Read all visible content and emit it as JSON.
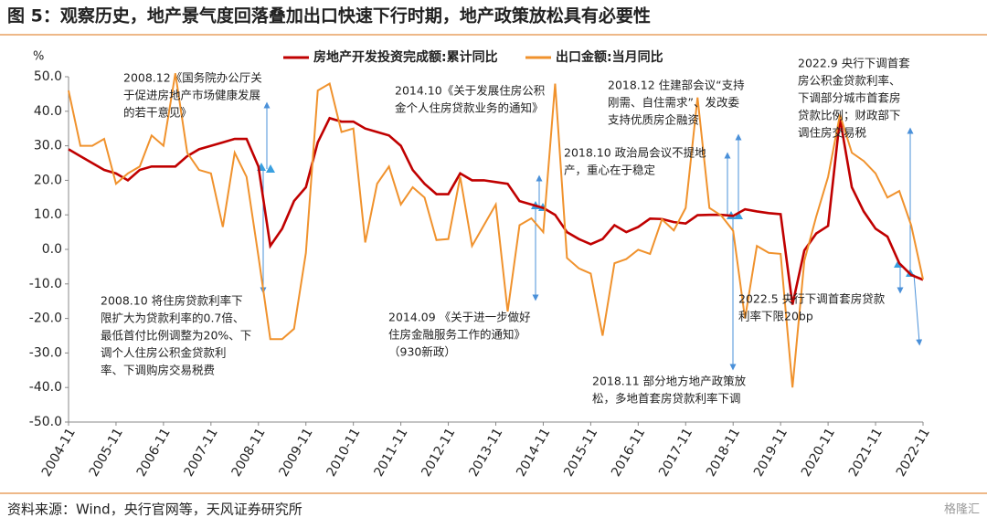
{
  "title": "图 5：观察历史，地产景气度回落叠加出口快速下行时期，地产政策放松具有必要性",
  "source": "资料来源：Wind，央行官网等，天风证券研究所",
  "watermark": "格隆汇",
  "chart_data": {
    "type": "line",
    "y_label": "%",
    "categories": [
      "2004-11",
      null,
      null,
      null,
      "2005-11",
      null,
      null,
      null,
      "2006-11",
      null,
      null,
      null,
      "2007-11",
      null,
      null,
      null,
      "2008-11",
      null,
      null,
      null,
      "2009-11",
      null,
      null,
      null,
      "2010-11",
      null,
      null,
      null,
      "2011-11",
      null,
      null,
      null,
      "2012-11",
      null,
      null,
      null,
      "2013-11",
      null,
      null,
      null,
      "2014-11",
      null,
      null,
      null,
      "2015-11",
      null,
      null,
      null,
      "2016-11",
      null,
      null,
      null,
      "2017-11",
      null,
      null,
      null,
      "2018-11",
      null,
      null,
      null,
      "2019-11",
      null,
      null,
      null,
      "2020-11",
      null,
      null,
      null,
      "2021-11",
      null,
      null,
      null,
      "2022-11"
    ],
    "series": [
      {
        "name": "房地产开发投资完成额:累计同比",
        "color": "#c00000",
        "values": [
          29,
          27,
          25,
          23,
          22,
          20,
          23,
          24,
          24,
          24,
          27,
          29,
          30,
          31,
          32,
          32,
          24,
          1,
          6,
          14,
          18,
          31,
          38,
          37,
          37,
          35,
          34,
          33,
          30,
          23,
          19,
          16,
          16,
          22,
          20,
          20,
          19.5,
          19,
          14,
          13,
          12,
          10,
          5,
          3,
          1.5,
          3,
          7,
          5,
          6.5,
          8.9,
          8.8,
          7.9,
          7.5,
          9.9,
          10,
          10,
          9.7,
          11.6,
          11,
          10.5,
          10.2,
          -16,
          -0.3,
          4.6,
          6.8,
          38,
          18,
          11,
          6,
          3.7,
          -4,
          -7.4,
          -8.8
        ]
      },
      {
        "name": "出口金额:当月同比",
        "color": "#f0922d",
        "values": [
          46,
          30,
          30,
          32,
          19,
          22,
          24,
          33,
          30,
          51,
          28,
          23,
          22,
          6.5,
          28,
          21,
          -2,
          -26,
          -26,
          -23,
          -1,
          46,
          48,
          34,
          35,
          2,
          19,
          24,
          13,
          18,
          15,
          2.7,
          3,
          21,
          1,
          7,
          13,
          -18,
          7,
          9,
          5,
          48,
          -2.5,
          -5.5,
          -7,
          -25,
          -4,
          -2.8,
          -0.1,
          -1.3,
          8.7,
          5.5,
          12,
          44,
          12,
          9.8,
          5.4,
          -20,
          1,
          -1,
          -1.3,
          -40,
          -3.3,
          9.5,
          21,
          39,
          28,
          25.6,
          22,
          15,
          16.9,
          7,
          -8.7
        ]
      }
    ],
    "ylim": [
      -50,
      50
    ],
    "yticks": [
      {
        "value": -50,
        "label": "-50.0"
      },
      {
        "value": -40,
        "label": "-40.0"
      },
      {
        "value": -30,
        "label": "-30.0"
      },
      {
        "value": -20,
        "label": "-20.0"
      },
      {
        "value": -10,
        "label": "-10.0"
      },
      {
        "value": 0,
        "label": "0.0"
      },
      {
        "value": 10,
        "label": "10.0"
      },
      {
        "value": 20,
        "label": "20.0"
      },
      {
        "value": 30,
        "label": "30.0"
      },
      {
        "value": 40,
        "label": "40.0"
      },
      {
        "value": 50,
        "label": "50.0"
      }
    ],
    "legend": "top",
    "annotations": [
      {
        "lines": [
          "2008.12《国务院办公厅关",
          "于促进房地产市场健康发展",
          "的若干意见》"
        ]
      },
      {
        "lines": [
          "2008.10 将住房贷款利率下",
          "限扩大为贷款利率的0.7倍、",
          "最低首付比例调整为20%、下",
          "调个人住房公积金贷款利",
          "率、下调购房交易税费"
        ]
      },
      {
        "lines": [
          "2014.10《关于发展住房公积",
          "金个人住房贷款业务的通知》"
        ]
      },
      {
        "lines": [
          "2014.09 《关于进一步做好",
          "住房金融服务工作的通知》",
          "（930新政）"
        ]
      },
      {
        "lines": [
          "2018.12 住建部会议“支持",
          "刚需、自住需求”、发改委",
          "支持优质房企融资"
        ]
      },
      {
        "lines": [
          "2018.10 政治局会议不提地",
          "产，重心在于稳定"
        ]
      },
      {
        "lines": [
          "2018.11 部分地方地产政策放",
          "松，多地首套房贷款利率下调"
        ]
      },
      {
        "lines": [
          "2022.9 央行下调首套",
          "房公积金贷款利率、",
          "下调部分城市首套房",
          "贷款比例；财政部下",
          "调住房交易税"
        ]
      },
      {
        "lines": [
          "2022.5 央行下调首套房贷款",
          "利率下限20bp"
        ]
      }
    ]
  }
}
